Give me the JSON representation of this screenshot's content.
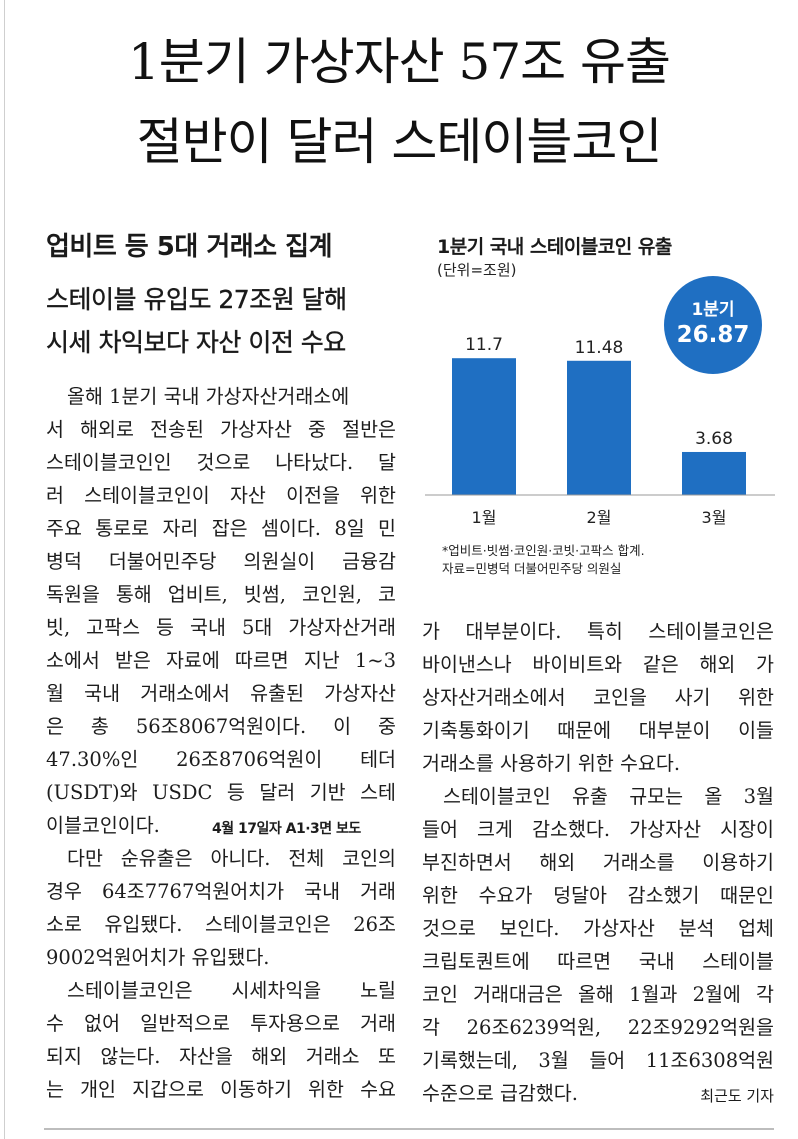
{
  "headline": {
    "line1": "1분기 가상자산 57조 유출",
    "line2": "절반이 달러 스테이블코인"
  },
  "subheads": [
    "업비트 등 5대 거래소 집계",
    "스테이블 유입도 27조원 달해",
    "시세 차익보다 자산 이전 수요"
  ],
  "chart_data": {
    "type": "bar",
    "title": "1분기 국내 스테이블코인 유출",
    "unit_label": "(단위=조원)",
    "categories": [
      "1월",
      "2월",
      "3월"
    ],
    "values": [
      11.7,
      11.48,
      3.68
    ],
    "value_labels": [
      "11.7",
      "11.48",
      "3.68"
    ],
    "ylim": [
      0,
      13
    ],
    "bar_color": "#1f6fc2",
    "total_badge": {
      "label": "1분기",
      "value": "26.87"
    },
    "footnotes": [
      "*업비트·빗썸·코인원·코빗·고팍스 합계.",
      "자료=민병덕 더불어민주당 의원실"
    ]
  },
  "body_left": [
    "올해 1분기 국내 가상자산거래소에",
    "서 해외로 전송된 가상자산 중 절반은",
    "스테이블코인인 것으로 나타났다. 달",
    "러 스테이블코인이 자산 이전을 위한",
    "주요 통로로 자리 잡은 셈이다. 8일 민",
    "병덕 더불어민주당 의원실이 금융감",
    "독원을 통해 업비트, 빗썸, 코인원, 코",
    "빗, 고팍스 등 국내 5대 가상자산거래",
    "소에서 받은 자료에 따르면 지난 1~3",
    "월 국내 거래소에서 유출된 가상자산",
    "은 총 56조8067억원이다. 이 중",
    "47.30%인 26조8706억원이 테더",
    "(USDT)와 USDC 등 달러 기반 스테",
    "이블코인이다.",
    "다만 순유출은 아니다. 전체 코인의",
    "경우 64조7767억원어치가 국내 거래",
    "소로 유입됐다. 스테이블코인은 26조",
    "9002억원어치가 유입됐다.",
    "스테이블코인은 시세차익을 노릴",
    "수 없어 일반적으로 투자용으로 거래",
    "되지 않는다. 자산을 해외 거래소 또",
    "는 개인 지갑으로 이동하기 위한 수요"
  ],
  "report_note": "4월 17일자 A1·3면 보도",
  "body_right": [
    "가 대부분이다. 특히 스테이블코인은",
    "바이낸스나 바이비트와 같은 해외 가",
    "상자산거래소에서 코인을 사기 위한",
    "기축통화이기 때문에 대부분이 이들",
    "거래소를 사용하기 위한 수요다.",
    "스테이블코인 유출 규모는 올 3월",
    "들어 크게 감소했다. 가상자산 시장이",
    "부진하면서 해외 거래소를 이용하기",
    "위한 수요가 덩달아 감소했기 때문인",
    "것으로 보인다. 가상자산 분석 업체",
    "크립토퀀트에 따르면 국내 스테이블",
    "코인 거래대금은 올해 1월과 2월에 각",
    "각 26조6239억원, 22조9292억원을",
    "기록했는데, 3월 들어 11조6308억원",
    "수준으로 급감했다."
  ],
  "byline": "최근도 기자"
}
